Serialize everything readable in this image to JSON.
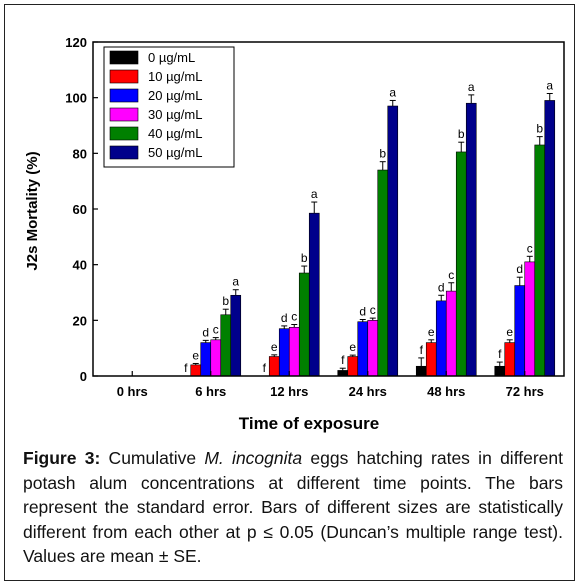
{
  "chart_data": {
    "type": "bar",
    "xlabel": "Time of exposure",
    "ylabel": "J2s Mortality (%)",
    "ylim": [
      0,
      120
    ],
    "yticks": [
      0,
      20,
      40,
      60,
      80,
      100,
      120
    ],
    "categories": [
      "0 hrs",
      "6 hrs",
      "12 hrs",
      "24 hrs",
      "48 hrs",
      "72 hrs"
    ],
    "legend_position": "top-left",
    "series": [
      {
        "name": "0 µg/mL",
        "color": "#000000",
        "values": [
          0,
          0,
          0,
          2,
          3.5,
          3.5
        ],
        "errors": [
          0,
          0,
          0,
          0.8,
          3,
          1.5
        ],
        "letters": [
          "",
          "f",
          "f",
          "f",
          "f",
          "f"
        ]
      },
      {
        "name": "10 µg/mL",
        "color": "#ff0000",
        "values": [
          0,
          4,
          7,
          7,
          12,
          12
        ],
        "errors": [
          0,
          0.5,
          0.6,
          0.5,
          1,
          1
        ],
        "letters": [
          "",
          "e",
          "e",
          "e",
          "e",
          "e"
        ]
      },
      {
        "name": "20 µg/mL",
        "color": "#0000ff",
        "values": [
          0,
          12,
          17,
          19.5,
          27,
          32.5
        ],
        "errors": [
          0,
          0.8,
          1,
          0.8,
          2,
          3
        ],
        "letters": [
          "",
          "d",
          "d",
          "d",
          "d",
          "d"
        ]
      },
      {
        "name": "30 µg/mL",
        "color": "#ff00ff",
        "values": [
          0,
          13,
          17.5,
          20,
          30.5,
          41
        ],
        "errors": [
          0,
          0.8,
          1,
          0.8,
          3,
          2
        ],
        "letters": [
          "",
          "c",
          "c",
          "c",
          "c",
          "c"
        ]
      },
      {
        "name": "40 µg/mL",
        "color": "#008000",
        "values": [
          0,
          22,
          37,
          74,
          80.5,
          83
        ],
        "errors": [
          0,
          2,
          2.5,
          3,
          3.5,
          3
        ],
        "letters": [
          "",
          "b",
          "b",
          "b",
          "b",
          "b"
        ]
      },
      {
        "name": "50 µg/mL",
        "color": "#00008b",
        "values": [
          0,
          29,
          58.5,
          97,
          98,
          99
        ],
        "errors": [
          0,
          2,
          4,
          2,
          3,
          2.5
        ],
        "letters": [
          "",
          "a",
          "a",
          "a",
          "a",
          "a"
        ]
      }
    ]
  },
  "caption": {
    "label": "Figure 3:",
    "text_1": " Cumulative ",
    "italic": "M. incognita",
    "text_2": " eggs hatching rates in different potash alum concentrations at different time points. The bars represent the standard error. Bars of different sizes are statistically different from each other at p ≤ 0.05 (Duncan’s multiple range test). Values are mean ± SE."
  }
}
